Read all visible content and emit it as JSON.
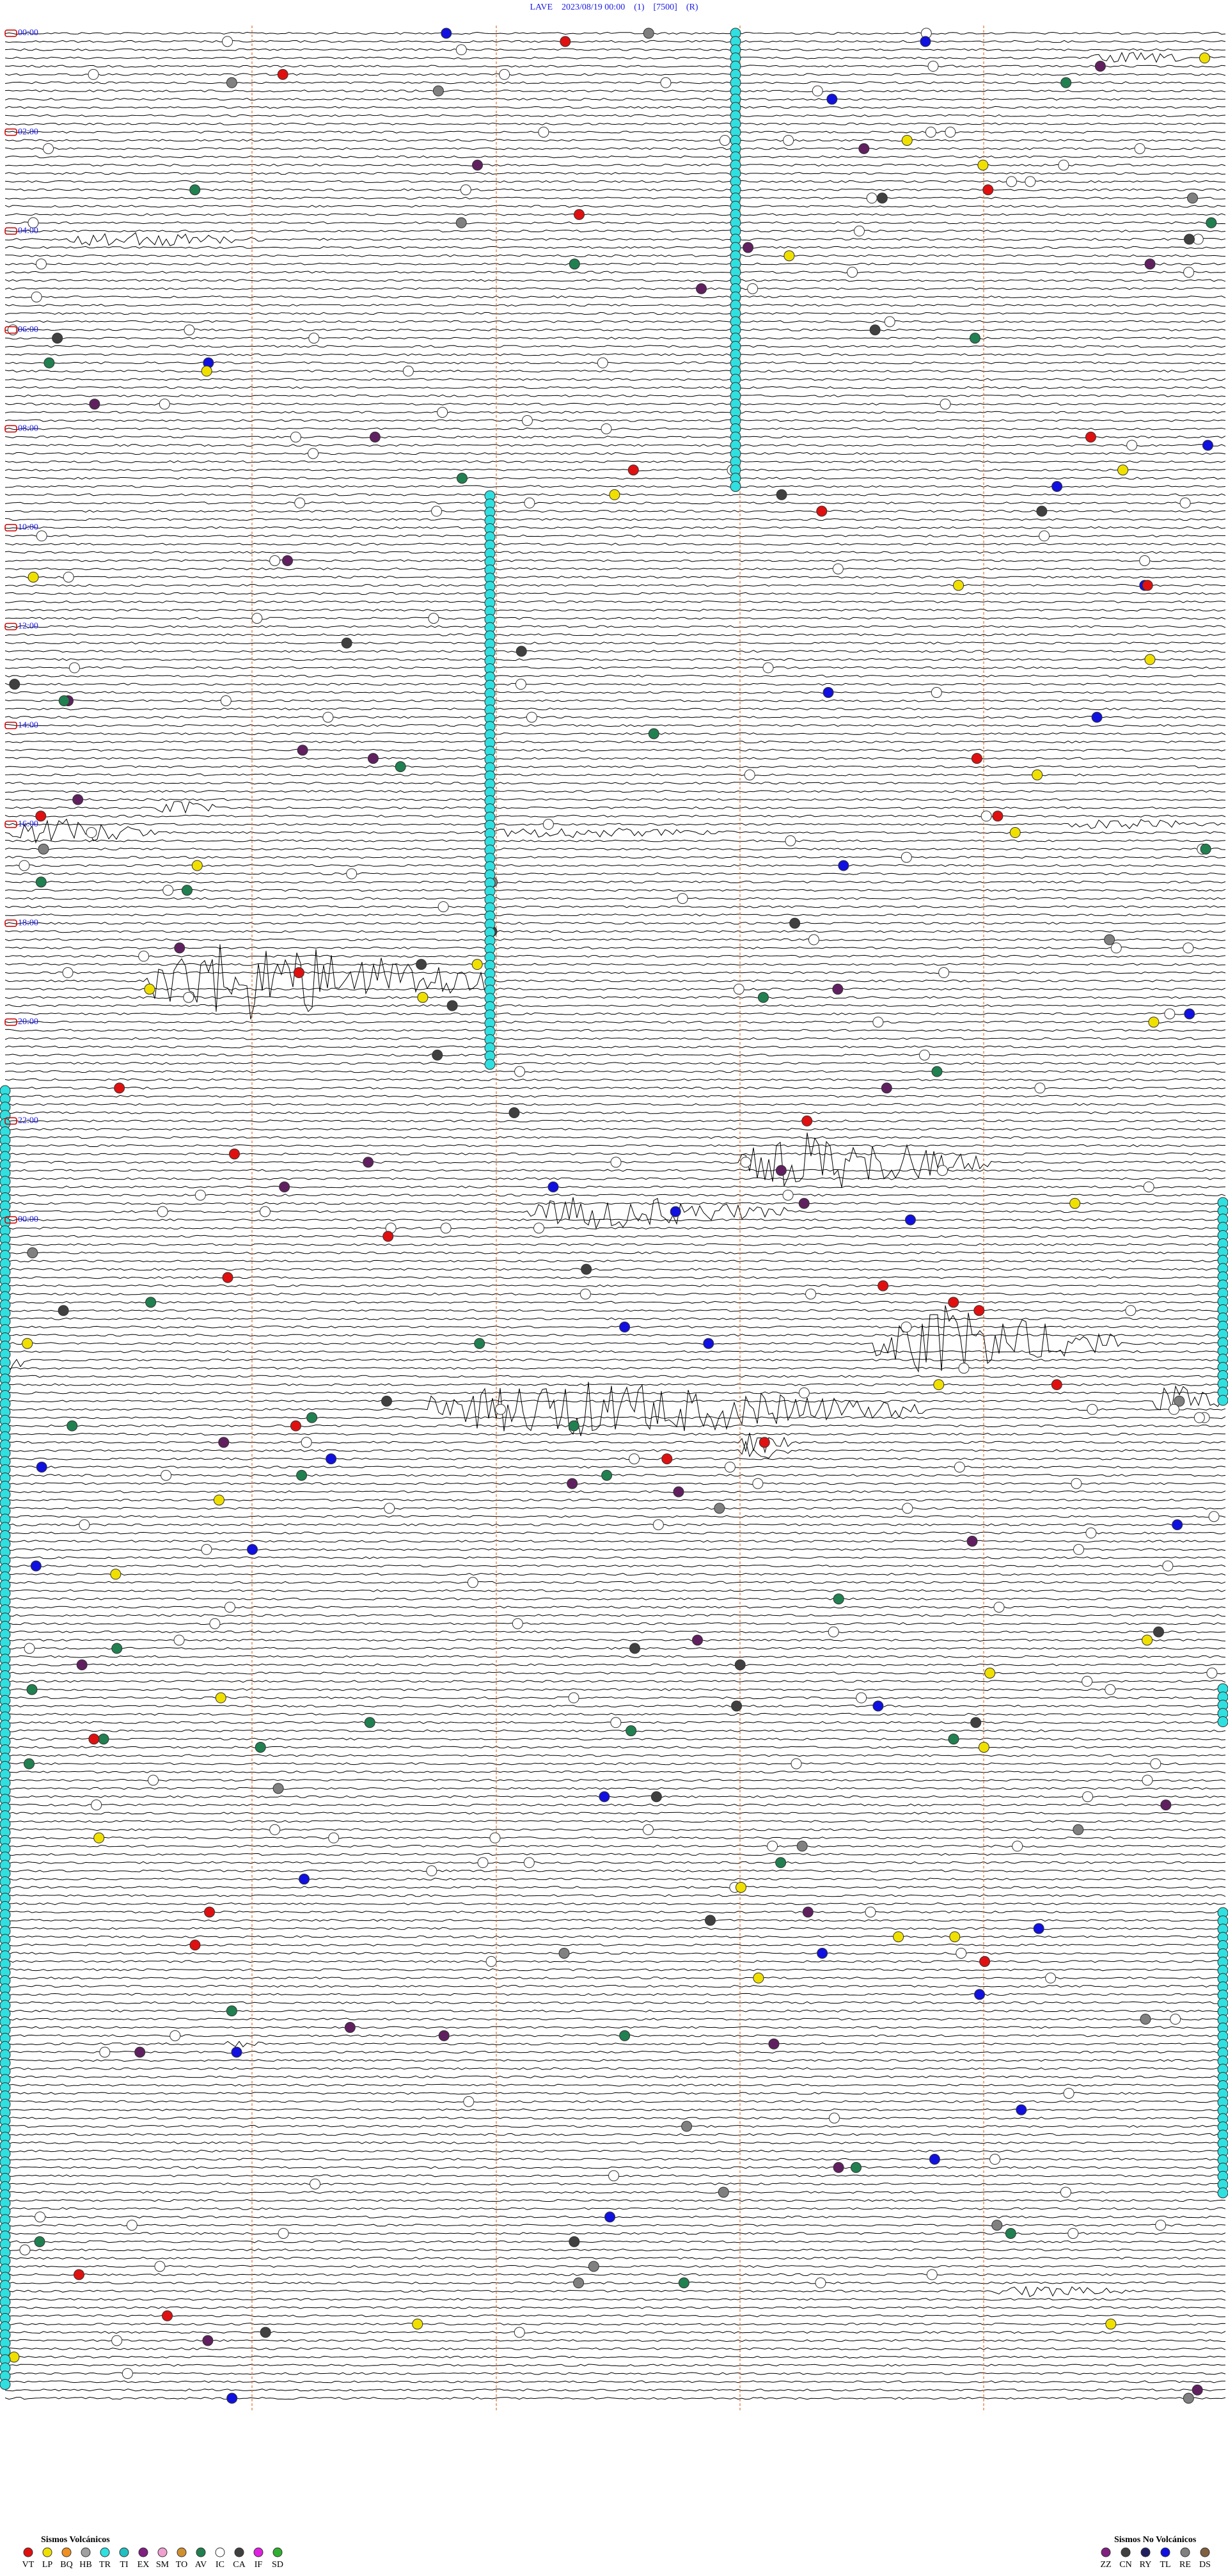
{
  "header": {
    "title": "LAVE    2023/08/19 00:00    (1)    [7500]    (R)"
  },
  "time_labels": [
    "00:00",
    "02:00",
    "04:00",
    "06:00",
    "08:00",
    "10:00",
    "12:00",
    "14:00",
    "16:00",
    "18:00",
    "20:00",
    "22:00",
    "00:00"
  ],
  "legend": {
    "volcanic": {
      "title": "Sismos Volcánicos",
      "codes": [
        "VT",
        "LP",
        "BQ",
        "HB",
        "TR",
        "TI",
        "EX",
        "SM",
        "TO",
        "AV",
        "IC",
        "CA",
        "IF",
        "SD"
      ]
    },
    "non_volcanic": {
      "title": "Sismos No Volcánicos",
      "codes": [
        "ZZ",
        "CN",
        "RY",
        "TL",
        "RE",
        "DS"
      ]
    }
  }
}
